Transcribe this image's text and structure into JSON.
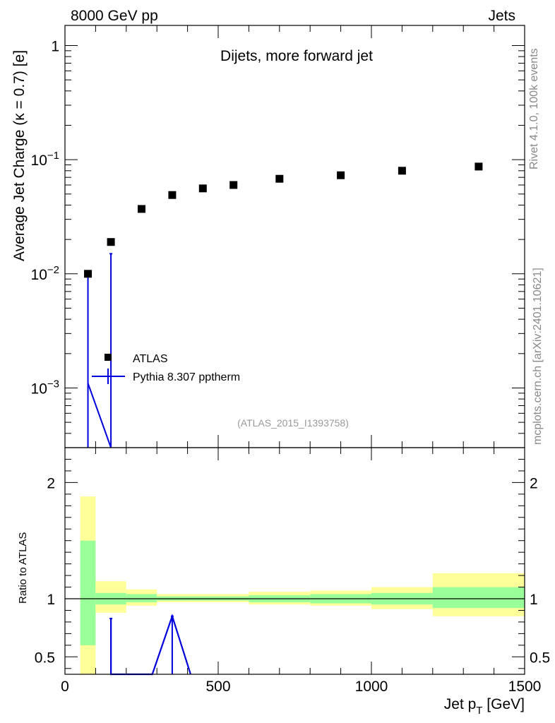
{
  "header": {
    "left": "8000 GeV pp",
    "right": "Jets"
  },
  "side": {
    "rivet": "Rivet 4.1.0,  100k events",
    "mcplots": "mcplots.cern.ch [arXiv:2401.10621]"
  },
  "chart_data": [
    {
      "type": "scatter",
      "title": "Dijets, more forward jet",
      "analysis_label": "(ATLAS_2015_I1393758)",
      "xlabel": "Jet p",
      "xlabel_sub": "T",
      "xlabel_unit": " [GeV]",
      "ylabel": "Average Jet Charge (κ = 0.7) [e]",
      "yscale": "log",
      "xlim": [
        0,
        1500
      ],
      "ylim": [
        0.0003,
        1.5
      ],
      "x_ticks": [
        0,
        500,
        1000,
        1500
      ],
      "y_ticks": [
        {
          "value": 1,
          "mant": "1",
          "exp": ""
        },
        {
          "value": 0.1,
          "mant": "10",
          "exp": "−1"
        },
        {
          "value": 0.01,
          "mant": "10",
          "exp": "−2"
        },
        {
          "value": 0.001,
          "mant": "10",
          "exp": "−3"
        }
      ],
      "legend": [
        {
          "label": "ATLAS",
          "style": "marker"
        },
        {
          "label": "Pythia 8.307 pptherm",
          "style": "line",
          "color": "#0000dd"
        }
      ],
      "series": [
        {
          "name": "ATLAS",
          "marker_color": "#000000",
          "x": [
            75,
            150,
            250,
            350,
            450,
            550,
            700,
            900,
            1100,
            1350
          ],
          "y": [
            0.01,
            0.019,
            0.037,
            0.049,
            0.056,
            0.06,
            0.068,
            0.073,
            0.08,
            0.087
          ]
        },
        {
          "name": "Pythia 8.307 pptherm",
          "color": "#0000dd",
          "x": [
            75,
            150
          ],
          "y": [
            0.0011,
            0.0003
          ],
          "errors": [
            {
              "x": 75,
              "low": 0.0003,
              "high": 0.01
            },
            {
              "x": 150,
              "low": 0.0003,
              "high": 0.015
            }
          ]
        }
      ]
    },
    {
      "type": "area",
      "ylabel": "Ratio to ATLAS",
      "xlim": [
        0,
        1500
      ],
      "ylim": [
        0.35,
        2.3
      ],
      "x_ticks": [
        0,
        500,
        1000,
        1500
      ],
      "y_ticks": [
        0.5,
        1,
        2
      ],
      "colors": {
        "inner": "#99ff99",
        "outer": "#ffff99",
        "reference": "#000000",
        "mc": "#0000dd"
      },
      "bands": [
        {
          "x0": 50,
          "x1": 100,
          "inner": [
            0.6,
            1.5
          ],
          "outer": [
            0.35,
            1.88
          ]
        },
        {
          "x0": 100,
          "x1": 200,
          "inner": [
            0.95,
            1.05
          ],
          "outer": [
            0.88,
            1.15
          ]
        },
        {
          "x0": 200,
          "x1": 300,
          "inner": [
            0.97,
            1.04
          ],
          "outer": [
            0.94,
            1.08
          ]
        },
        {
          "x0": 300,
          "x1": 400,
          "inner": [
            0.985,
            1.02
          ],
          "outer": [
            0.97,
            1.04
          ]
        },
        {
          "x0": 400,
          "x1": 500,
          "inner": [
            0.985,
            1.02
          ],
          "outer": [
            0.97,
            1.04
          ]
        },
        {
          "x0": 500,
          "x1": 600,
          "inner": [
            0.985,
            1.02
          ],
          "outer": [
            0.97,
            1.04
          ]
        },
        {
          "x0": 600,
          "x1": 800,
          "inner": [
            0.97,
            1.03
          ],
          "outer": [
            0.95,
            1.06
          ]
        },
        {
          "x0": 800,
          "x1": 1000,
          "inner": [
            0.96,
            1.04
          ],
          "outer": [
            0.94,
            1.07
          ]
        },
        {
          "x0": 1000,
          "x1": 1200,
          "inner": [
            0.95,
            1.05
          ],
          "outer": [
            0.91,
            1.1
          ]
        },
        {
          "x0": 1200,
          "x1": 1500,
          "inner": [
            0.92,
            1.1
          ],
          "outer": [
            0.85,
            1.22
          ]
        }
      ],
      "mc_line": {
        "x": [
          150,
          150,
          210,
          240,
          285,
          350,
          410
        ],
        "y": [
          0.83,
          0.35,
          0.35,
          0.35,
          0.35,
          0.85,
          0.35
        ]
      },
      "mc_errors": [
        {
          "x": 150,
          "low": 0.35,
          "high": 0.83
        },
        {
          "x": 350,
          "low": 0.35,
          "high": 0.85
        }
      ]
    }
  ]
}
